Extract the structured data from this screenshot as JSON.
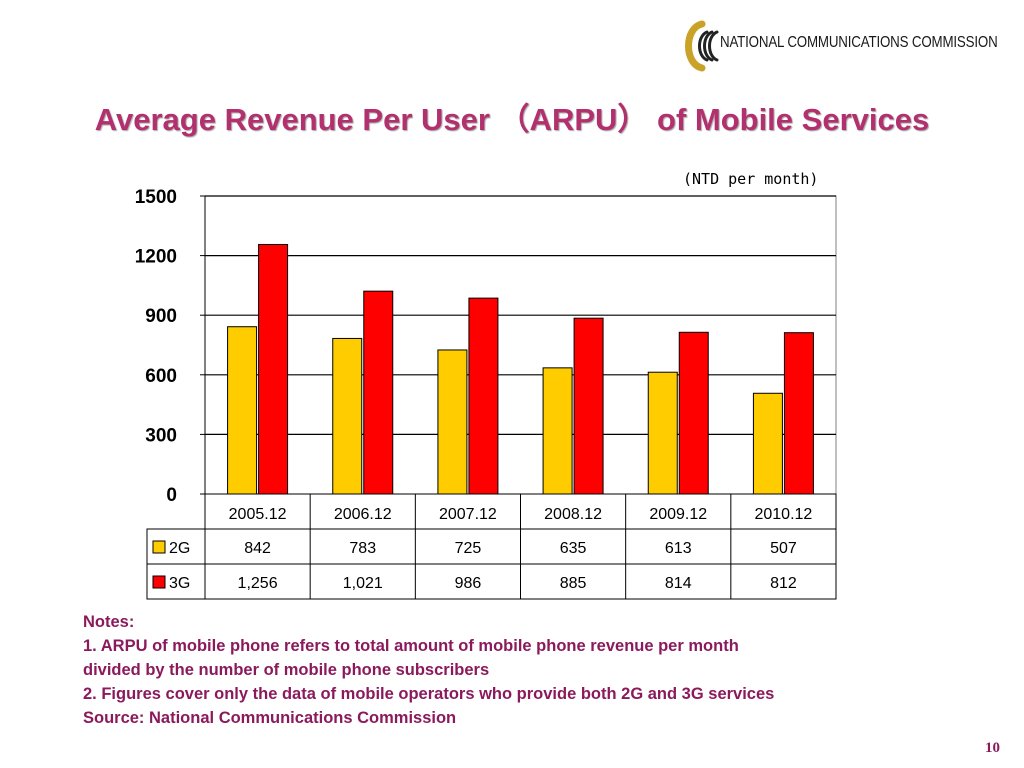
{
  "header": {
    "logo_text": "NATIONAL COMMUNICATIONS COMMISSION",
    "title": "Average Revenue Per User （ARPU） of Mobile Services",
    "unit_note": "(NTD per month)"
  },
  "chart_data": {
    "type": "bar",
    "categories": [
      "2005.12",
      "2006.12",
      "2007.12",
      "2008.12",
      "2009.12",
      "2010.12"
    ],
    "series": [
      {
        "name": "2G",
        "values": [
          842,
          783,
          725,
          635,
          613,
          507
        ],
        "labels": [
          "842",
          "783",
          "725",
          "635",
          "613",
          "507"
        ],
        "color": "#ffcc00"
      },
      {
        "name": "3G",
        "values": [
          1256,
          1021,
          986,
          885,
          814,
          812
        ],
        "labels": [
          "1,256",
          "1,021",
          "986",
          "885",
          "814",
          "812"
        ],
        "color": "#ff0000"
      }
    ],
    "y_ticks": [
      "0",
      "300",
      "600",
      "900",
      "1200",
      "1500"
    ],
    "ylim": [
      0,
      1500
    ],
    "grid": true,
    "data_table": true
  },
  "notes": {
    "heading": "Notes:",
    "line1": "1. ARPU of mobile phone refers to total amount of mobile phone revenue per month",
    "line2": "divided by the number of mobile phone subscribers",
    "line3": "2. Figures cover only the data of mobile operators who provide both 2G and 3G services",
    "source": "Source: National Communications Commission"
  },
  "page_number": "10"
}
